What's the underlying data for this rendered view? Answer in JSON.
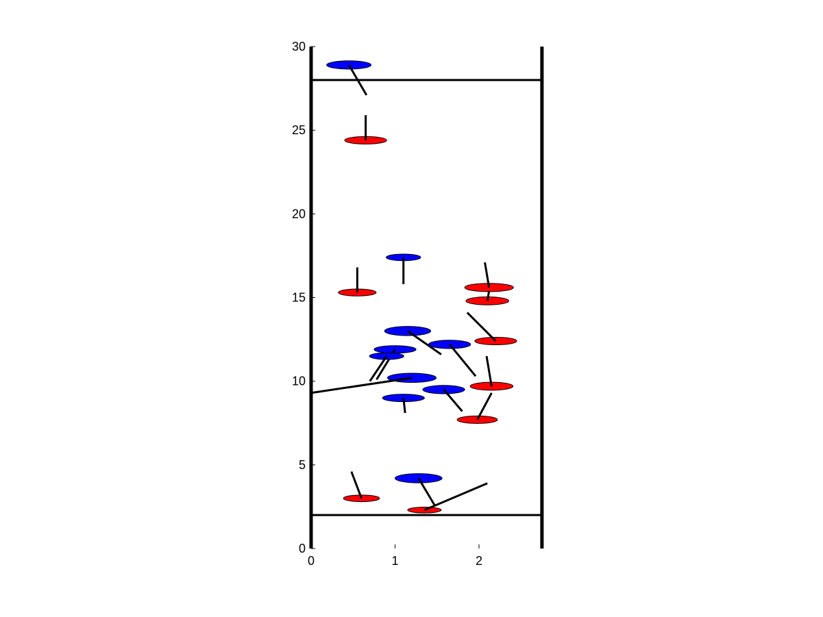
{
  "chart_data": {
    "type": "scatter",
    "title": "",
    "xlabel": "",
    "ylabel": "",
    "xlim": [
      0,
      2.8
    ],
    "ylim": [
      0,
      30
    ],
    "x_ticks": [
      0,
      1,
      2
    ],
    "y_ticks": [
      0,
      5,
      10,
      15,
      20,
      25,
      30
    ],
    "x_tick_labels": [
      "0",
      "1",
      "2"
    ],
    "y_tick_labels": [
      "0",
      "5",
      "10",
      "15",
      "20",
      "25",
      "30"
    ],
    "grid": false,
    "legend": "none",
    "colors": {
      "blue": "#0000ff",
      "red": "#ff0000",
      "line": "#000000"
    },
    "boundaries": {
      "left_wall_x": 0,
      "right_wall_x": 2.75,
      "bottom_line_y": 2,
      "top_line_y": 28
    },
    "series": [
      {
        "color": "blue",
        "points": [
          {
            "x": 0.45,
            "y": 28.9,
            "width": 0.53,
            "height": 0.5,
            "line_to": [
              0.66,
              27.1
            ]
          },
          {
            "x": 1.1,
            "y": 17.4,
            "width": 0.41,
            "height": 0.4,
            "line_to": [
              1.1,
              15.8
            ]
          },
          {
            "x": 1.15,
            "y": 13.0,
            "width": 0.55,
            "height": 0.55,
            "line_to": [
              1.55,
              11.6
            ]
          },
          {
            "x": 1.65,
            "y": 12.2,
            "width": 0.5,
            "height": 0.5,
            "line_to": [
              1.96,
              10.3
            ]
          },
          {
            "x": 1.0,
            "y": 11.9,
            "width": 0.5,
            "height": 0.45,
            "line_to": [
              0.78,
              10.1
            ]
          },
          {
            "x": 0.9,
            "y": 11.5,
            "width": 0.41,
            "height": 0.4,
            "line_to": [
              0.7,
              10.0
            ]
          },
          {
            "x": 1.2,
            "y": 10.2,
            "width": 0.58,
            "height": 0.55,
            "line_to": [
              0.0,
              9.3
            ]
          },
          {
            "x": 1.1,
            "y": 9.0,
            "width": 0.5,
            "height": 0.45,
            "line_to": [
              1.12,
              8.1
            ]
          },
          {
            "x": 1.58,
            "y": 9.5,
            "width": 0.5,
            "height": 0.5,
            "line_to": [
              1.8,
              8.2
            ]
          },
          {
            "x": 1.28,
            "y": 4.2,
            "width": 0.56,
            "height": 0.55,
            "line_to": [
              1.47,
              2.6
            ]
          }
        ]
      },
      {
        "color": "red",
        "points": [
          {
            "x": 0.65,
            "y": 24.4,
            "width": 0.5,
            "height": 0.45,
            "line_to": [
              0.65,
              25.9
            ]
          },
          {
            "x": 0.55,
            "y": 15.3,
            "width": 0.45,
            "height": 0.42,
            "line_to": [
              0.55,
              16.8
            ]
          },
          {
            "x": 2.12,
            "y": 15.6,
            "width": 0.58,
            "height": 0.5,
            "line_to": [
              2.07,
              17.1
            ]
          },
          {
            "x": 2.1,
            "y": 14.8,
            "width": 0.51,
            "height": 0.48,
            "line_to": [
              2.12,
              15.4
            ]
          },
          {
            "x": 2.2,
            "y": 12.4,
            "width": 0.5,
            "height": 0.45,
            "line_to": [
              1.86,
              14.1
            ]
          },
          {
            "x": 2.15,
            "y": 9.7,
            "width": 0.51,
            "height": 0.48,
            "line_to": [
              2.09,
              11.5
            ]
          },
          {
            "x": 1.98,
            "y": 7.7,
            "width": 0.48,
            "height": 0.45,
            "line_to": [
              2.15,
              9.3
            ]
          },
          {
            "x": 0.6,
            "y": 3.0,
            "width": 0.43,
            "height": 0.4,
            "line_to": [
              0.48,
              4.6
            ]
          },
          {
            "x": 1.35,
            "y": 2.3,
            "width": 0.4,
            "height": 0.35,
            "line_to": [
              2.1,
              3.9
            ]
          }
        ]
      }
    ]
  }
}
